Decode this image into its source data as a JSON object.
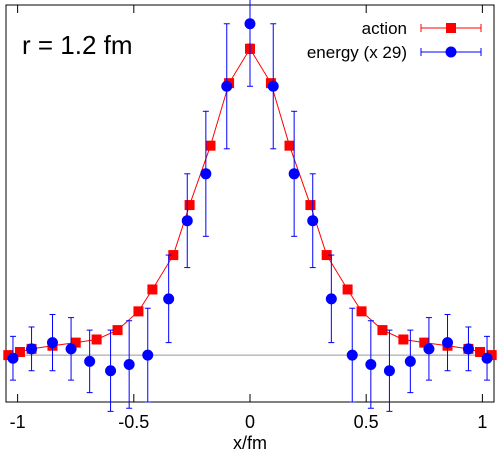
{
  "chart_data": {
    "type": "scatter",
    "title": "r = 1.2 fm",
    "xlabel": "x/fm",
    "ylabel": "",
    "xlim": [
      -1.05,
      1.05
    ],
    "ylim": [
      -0.15,
      1.12
    ],
    "xticks": [
      -1,
      -0.5,
      0,
      0.5,
      1
    ],
    "xtick_labels": [
      "-1",
      "-0.5",
      "0",
      "0.5",
      "1"
    ],
    "grid": false,
    "legend_position": "top-right",
    "series": [
      {
        "name": "action",
        "color": "#ff0000",
        "marker": "square",
        "line": true,
        "x": [
          -1.04,
          -0.99,
          -0.94,
          -0.85,
          -0.75,
          -0.66,
          -0.57,
          -0.48,
          -0.42,
          -0.33,
          -0.26,
          -0.17,
          -0.09,
          0,
          0.09,
          0.17,
          0.26,
          0.33,
          0.42,
          0.48,
          0.57,
          0.66,
          0.75,
          0.85,
          0.94,
          0.99,
          1.04
        ],
        "y": [
          0,
          0.01,
          0.02,
          0.03,
          0.04,
          0.05,
          0.08,
          0.14,
          0.21,
          0.32,
          0.48,
          0.67,
          0.87,
          0.98,
          0.87,
          0.67,
          0.48,
          0.32,
          0.21,
          0.14,
          0.08,
          0.05,
          0.04,
          0.03,
          0.02,
          0.01,
          0
        ],
        "err": [
          0.01,
          0.01,
          0.01,
          0.01,
          0.01,
          0.01,
          0.01,
          0.01,
          0.01,
          0.01,
          0.01,
          0.01,
          0.01,
          0.015,
          0.01,
          0.01,
          0.01,
          0.01,
          0.01,
          0.01,
          0.01,
          0.01,
          0.01,
          0.01,
          0.01,
          0.01,
          0.01
        ]
      },
      {
        "name": "energy (x 29)",
        "color": "#0000ff",
        "marker": "circle",
        "line": false,
        "x": [
          -1.02,
          -0.94,
          -0.85,
          -0.77,
          -0.69,
          -0.6,
          -0.52,
          -0.44,
          -0.35,
          -0.27,
          -0.19,
          -0.1,
          0,
          0.1,
          0.19,
          0.27,
          0.35,
          0.44,
          0.52,
          0.6,
          0.69,
          0.77,
          0.85,
          0.94,
          1.02
        ],
        "y": [
          -0.01,
          0.02,
          0.04,
          0.02,
          -0.02,
          -0.05,
          -0.03,
          0,
          0.18,
          0.43,
          0.58,
          0.86,
          1.06,
          0.86,
          0.58,
          0.43,
          0.18,
          0,
          -0.03,
          -0.05,
          -0.02,
          0.02,
          0.04,
          0.02,
          -0.01
        ],
        "err": [
          0.07,
          0.07,
          0.09,
          0.1,
          0.1,
          0.13,
          0.14,
          0.15,
          0.14,
          0.15,
          0.2,
          0.2,
          0.2,
          0.2,
          0.2,
          0.15,
          0.14,
          0.15,
          0.14,
          0.13,
          0.1,
          0.1,
          0.09,
          0.07,
          0.07
        ]
      }
    ]
  }
}
